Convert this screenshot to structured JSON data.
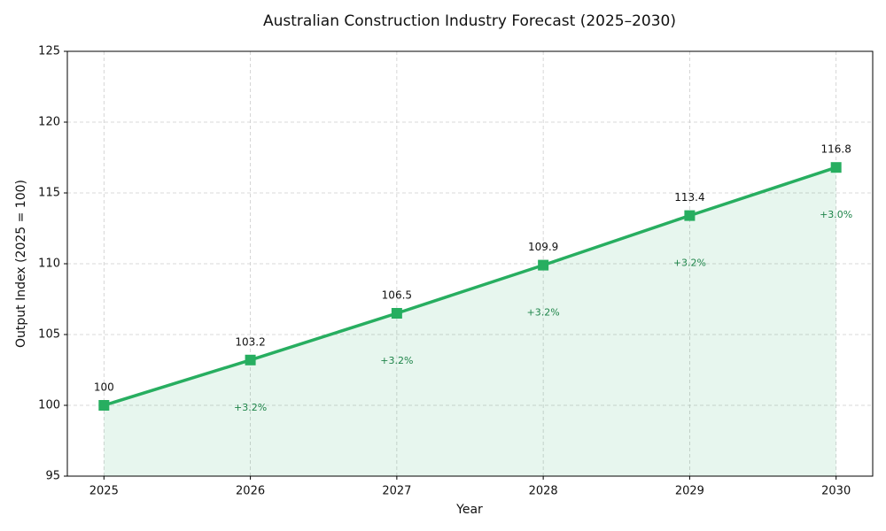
{
  "chart_data": {
    "type": "line",
    "title": "Australian Construction Industry Forecast (2025–2030)",
    "x_label": "Year",
    "y_label": "Output Index (2025 = 100)",
    "x": [
      2025,
      2026,
      2027,
      2028,
      2029,
      2030
    ],
    "series": [
      {
        "name": "Output Index",
        "color": "#27ae60",
        "values": [
          100,
          103.2,
          106.5,
          109.9,
          113.4,
          116.8
        ],
        "growth_labels": [
          null,
          "+3.2%",
          "+3.2%",
          "+3.2%",
          "+3.2%",
          "+3.0%"
        ]
      }
    ],
    "xlim": [
      2024.75,
      2030.25
    ],
    "xticks": [
      2025,
      2026,
      2027,
      2028,
      2029,
      2030
    ],
    "ylim": [
      95,
      125
    ],
    "yticks": [
      95,
      100,
      105,
      110,
      115,
      120,
      125
    ],
    "grid": true,
    "area_fill": true
  }
}
